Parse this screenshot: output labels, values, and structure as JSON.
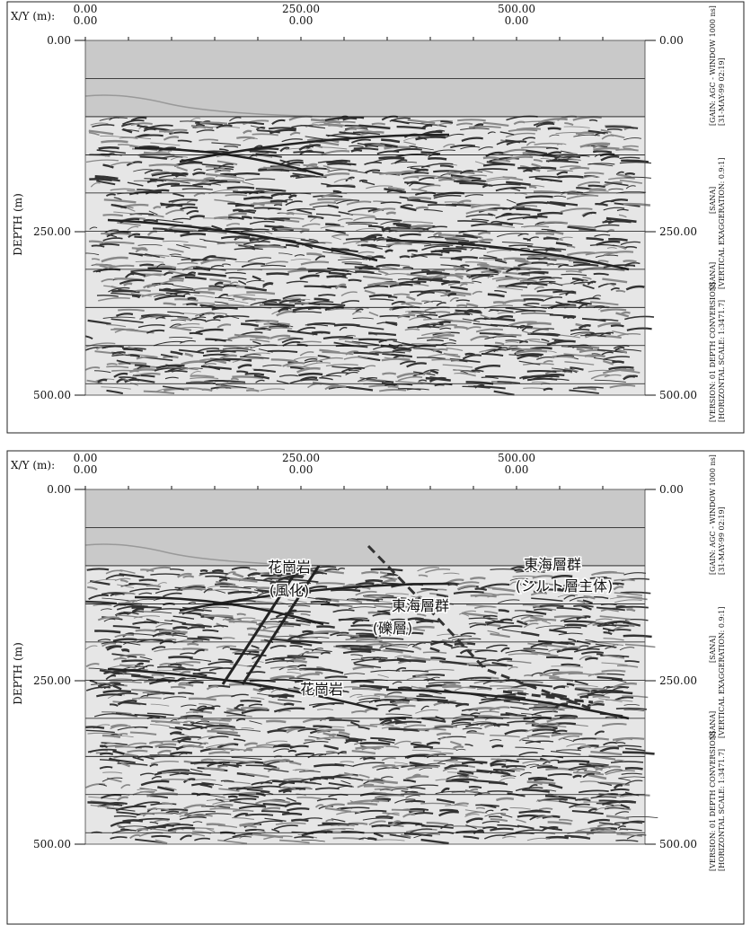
{
  "panels": [
    {
      "x_label": "X/Y (m):",
      "depth_label": "DEPTH (m)",
      "x_ticks": [
        {
          "top": "0.00",
          "bottom": "0.00"
        },
        {
          "top": "250.00",
          "bottom": "0.00"
        },
        {
          "top": "500.00",
          "bottom": "0.00"
        }
      ],
      "depth_ticks": [
        "0.00",
        "250.00",
        "500.00"
      ],
      "side_text": [
        "[VERSION: 01 DEPTH CONVERSION]",
        "[HORIZONTAL SCALE: 1:3471.7]",
        "[SANA]",
        "[VERTICAL EXAGGERATION: 0.9:1]",
        "[SANA]",
        "[GAIN: AGC - WINDOW 1000 ns]",
        "[31-MAY-99 02:19]"
      ],
      "annotations": []
    },
    {
      "x_label": "X/Y (m):",
      "depth_label": "DEPTH (m)",
      "x_ticks": [
        {
          "top": "0.00",
          "bottom": "0.00"
        },
        {
          "top": "250.00",
          "bottom": "0.00"
        },
        {
          "top": "500.00",
          "bottom": "0.00"
        }
      ],
      "depth_ticks": [
        "0.00",
        "250.00",
        "500.00"
      ],
      "side_text": [
        "[VERSION: 01 DEPTH CONVERSION]",
        "[HORIZONTAL SCALE: 1:3471.7]",
        "[SANA]",
        "[VERTICAL EXAGGERATION: 0.9:1]",
        "[SANA]",
        "[GAIN: AGC - WINDOW 1000 ns]",
        "[31-MAY-99 02:19]"
      ],
      "annotations": [
        "花崗岩",
        "(風化)",
        "東海層群",
        "(礫層)",
        "花崗岩",
        "東海層群",
        "(シルト層主体)"
      ]
    }
  ]
}
